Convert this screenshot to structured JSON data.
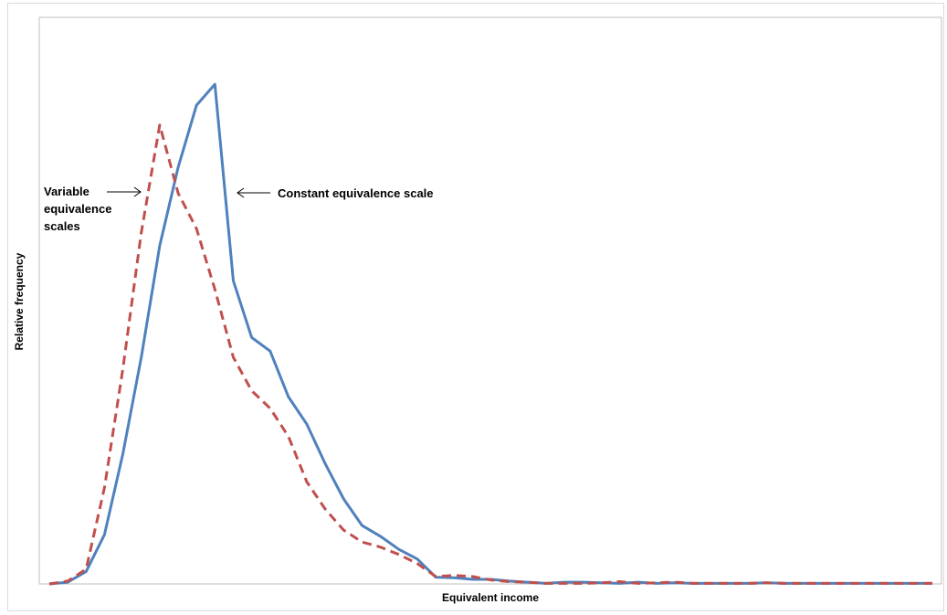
{
  "chart_data": {
    "type": "line",
    "title": "",
    "xlabel": "Equivalent income",
    "ylabel": "Relative frequency",
    "xlim": [
      0,
      48
    ],
    "ylim": [
      0,
      100
    ],
    "grid": false,
    "legend": "none",
    "x": [
      0,
      1,
      2,
      3,
      4,
      5,
      6,
      7,
      8,
      9,
      10,
      11,
      12,
      13,
      14,
      15,
      16,
      17,
      18,
      19,
      20,
      21,
      22,
      23,
      24,
      25,
      26,
      27,
      28,
      29,
      30,
      31,
      32,
      33,
      34,
      35,
      36,
      37,
      38,
      39,
      40,
      41,
      42,
      43,
      44,
      45,
      46,
      47,
      48
    ],
    "series": [
      {
        "color": "#4F81BD",
        "dash": "solid",
        "values": [
          0,
          0.3,
          2.2,
          8.7,
          23,
          40,
          59.7,
          73.5,
          84.5,
          88.2,
          53.5,
          43.5,
          41.1,
          33,
          28.2,
          21.2,
          15,
          10.3,
          8.4,
          6.1,
          4.4,
          1.2,
          1.1,
          0.8,
          0.8,
          0.5,
          0.3,
          0.1,
          0.3,
          0.3,
          0.2,
          0.1,
          0.3,
          0.1,
          0.2,
          0.1,
          0.1,
          0.1,
          0.1,
          0.2,
          0.1,
          0.1,
          0.1,
          0.1,
          0.1,
          0.1,
          0.1,
          0.1,
          0.1
        ]
      },
      {
        "color": "#C0504D",
        "dash": "dashed",
        "values": [
          0,
          0.5,
          2.6,
          17,
          38,
          62,
          81,
          69,
          62.7,
          52,
          40,
          34.1,
          31,
          26,
          18,
          13.2,
          9.5,
          7.4,
          6.5,
          5.2,
          3.6,
          1.3,
          1.5,
          1.3,
          0.7,
          0.4,
          0.3,
          0.1,
          0.1,
          0.1,
          0.2,
          0.4,
          0.1,
          0.2,
          0.3,
          0.1,
          0.1,
          0.1,
          0.1,
          0.2,
          0.1,
          0.1,
          0.1,
          0.1,
          0.1,
          0.1,
          0.1,
          0.1,
          0.1
        ]
      }
    ],
    "annotations": [
      {
        "id": "variable",
        "lines": [
          "Variable",
          "equivalence",
          "scales"
        ]
      },
      {
        "id": "constant",
        "lines": [
          "Constant equivalence scale"
        ]
      }
    ]
  }
}
